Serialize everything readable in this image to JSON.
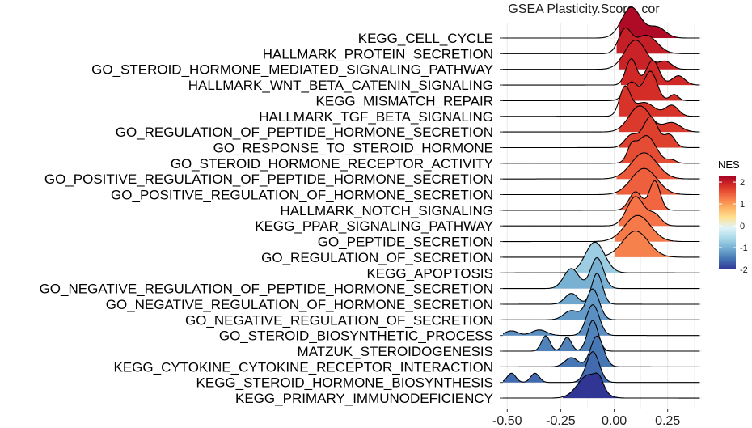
{
  "chart_data": {
    "type": "ridgeline",
    "title": "GSEA Plasticity.Score_cor",
    "xlabel": "",
    "ylabel": "",
    "xlim": [
      -0.52,
      0.41
    ],
    "x_ticks": [
      -0.5,
      -0.25,
      0.0,
      0.25
    ],
    "x_tick_labels": [
      "-0.50",
      "-0.25",
      "0.00",
      "0.25"
    ],
    "grid": true,
    "legend": {
      "title": "NES",
      "placement": "right",
      "range": [
        -2,
        2.3
      ],
      "ticks": [
        2,
        1,
        0,
        -1,
        -2
      ],
      "tick_labels": [
        "2",
        "1",
        "0",
        "-1",
        "-2"
      ],
      "colors": [
        "#313695",
        "#4575b4",
        "#74add1",
        "#abd9e9",
        "#e0f3f8",
        "#fee090",
        "#fdae61",
        "#f46d43",
        "#d73027",
        "#a50026"
      ]
    },
    "series": [
      {
        "name": "KEGG_CELL_CYCLE",
        "nes": 2.2,
        "lo": 0.02,
        "peaks": [
          [
            0.08,
            0.045,
            1.0
          ],
          [
            0.2,
            0.04,
            0.35
          ]
        ]
      },
      {
        "name": "HALLMARK_PROTEIN_SECRETION",
        "nes": 2.0,
        "lo": 0.01,
        "peaks": [
          [
            0.05,
            0.03,
            0.75
          ],
          [
            0.15,
            0.05,
            0.6
          ]
        ]
      },
      {
        "name": "GO_STEROID_HORMONE_MEDIATED_SIGNALING_PATHWAY",
        "nes": 1.95,
        "lo": 0.02,
        "peaks": [
          [
            0.1,
            0.05,
            0.95
          ],
          [
            0.24,
            0.03,
            0.25
          ]
        ]
      },
      {
        "name": "HALLMARK_WNT_BETA_CATENIN_SIGNALING",
        "nes": 1.9,
        "lo": 0.03,
        "peaks": [
          [
            0.08,
            0.025,
            0.85
          ],
          [
            0.18,
            0.03,
            0.8
          ],
          [
            0.3,
            0.03,
            0.3
          ]
        ]
      },
      {
        "name": "KEGG_MISMATCH_REPAIR",
        "nes": 1.85,
        "lo": 0.02,
        "peaks": [
          [
            0.08,
            0.03,
            0.6
          ],
          [
            0.17,
            0.03,
            0.95
          ],
          [
            0.28,
            0.02,
            0.2
          ]
        ]
      },
      {
        "name": "HALLMARK_TGF_BETA_SIGNALING",
        "nes": 1.8,
        "lo": 0.02,
        "peaks": [
          [
            0.05,
            0.025,
            0.9
          ],
          [
            0.14,
            0.05,
            0.45
          ],
          [
            0.27,
            0.03,
            0.35
          ]
        ]
      },
      {
        "name": "GO_REGULATION_OF_PEPTIDE_HORMONE_SECRETION",
        "nes": 1.75,
        "lo": 0.02,
        "peaks": [
          [
            0.12,
            0.05,
            0.85
          ],
          [
            0.27,
            0.04,
            0.3
          ]
        ]
      },
      {
        "name": "GO_RESPONSE_TO_STEROID_HORMONE",
        "nes": 1.7,
        "lo": 0.02,
        "peaks": [
          [
            0.08,
            0.03,
            0.4
          ],
          [
            0.17,
            0.035,
            1.0
          ],
          [
            0.26,
            0.025,
            0.4
          ]
        ]
      },
      {
        "name": "GO_STEROID_HORMONE_RECEPTOR_ACTIVITY",
        "nes": 1.6,
        "lo": 0.01,
        "peaks": [
          [
            0.08,
            0.02,
            0.4
          ],
          [
            0.15,
            0.045,
            0.9
          ],
          [
            0.27,
            0.02,
            0.1
          ]
        ]
      },
      {
        "name": "GO_POSITIVE_REGULATION_OF_PEPTIDE_HORMONE_SECRETION",
        "nes": 1.5,
        "lo": 0.01,
        "peaks": [
          [
            0.14,
            0.06,
            0.85
          ]
        ]
      },
      {
        "name": "GO_POSITIVE_REGULATION_OF_HORMONE_SECRETION",
        "nes": 1.45,
        "lo": 0.01,
        "peaks": [
          [
            0.14,
            0.06,
            0.85
          ]
        ]
      },
      {
        "name": "HALLMARK_NOTCH_SIGNALING",
        "nes": 1.4,
        "lo": 0.02,
        "peaks": [
          [
            0.1,
            0.03,
            0.6
          ],
          [
            0.19,
            0.025,
            0.95
          ]
        ]
      },
      {
        "name": "KEGG_PPAR_SIGNALING_PATHWAY",
        "nes": 1.3,
        "lo": 0.02,
        "peaks": [
          [
            0.1,
            0.04,
            0.95
          ],
          [
            0.19,
            0.03,
            0.35
          ]
        ]
      },
      {
        "name": "GO_PEPTIDE_SECRETION",
        "nes": 1.25,
        "lo": 0.0,
        "peaks": [
          [
            0.11,
            0.06,
            0.85
          ]
        ]
      },
      {
        "name": "GO_REGULATION_OF_SECRETION",
        "nes": 1.2,
        "lo": 0.0,
        "peaks": [
          [
            0.1,
            0.06,
            0.85
          ]
        ]
      },
      {
        "name": "KEGG_APOPTOSIS",
        "nes": -0.7,
        "lo": -0.18,
        "peaks": [
          [
            -0.09,
            0.045,
            1.0
          ]
        ]
      },
      {
        "name": "GO_NEGATIVE_REGULATION_OF_PEPTIDE_HORMONE_SECRETION",
        "nes": -1.0,
        "lo": -0.3,
        "peaks": [
          [
            -0.2,
            0.035,
            0.65
          ],
          [
            -0.08,
            0.03,
            1.0
          ]
        ]
      },
      {
        "name": "GO_NEGATIVE_REGULATION_OF_HORMONE_SECRETION",
        "nes": -1.1,
        "lo": -0.3,
        "peaks": [
          [
            -0.2,
            0.03,
            0.35
          ],
          [
            -0.08,
            0.025,
            1.0
          ]
        ]
      },
      {
        "name": "GO_NEGATIVE_REGULATION_OF_SECRETION",
        "nes": -1.2,
        "lo": -0.3,
        "peaks": [
          [
            -0.2,
            0.035,
            0.3
          ],
          [
            -0.1,
            0.03,
            1.0
          ]
        ]
      },
      {
        "name": "GO_STEROID_BIOSYNTHETIC_PROCESS",
        "nes": -1.3,
        "lo": -0.52,
        "peaks": [
          [
            -0.48,
            0.03,
            0.15
          ],
          [
            -0.35,
            0.035,
            0.18
          ],
          [
            -0.1,
            0.03,
            1.0
          ]
        ]
      },
      {
        "name": "MATZUK_STEROIDOGENESIS",
        "nes": -1.4,
        "lo": -0.4,
        "peaks": [
          [
            -0.32,
            0.02,
            0.5
          ],
          [
            -0.22,
            0.02,
            0.45
          ],
          [
            -0.1,
            0.025,
            1.0
          ]
        ]
      },
      {
        "name": "KEGG_CYTOKINE_CYTOKINE_RECEPTOR_INTERACTION",
        "nes": -1.5,
        "lo": -0.3,
        "peaks": [
          [
            -0.2,
            0.03,
            0.3
          ],
          [
            -0.08,
            0.03,
            1.0
          ]
        ]
      },
      {
        "name": "KEGG_STEROID_HORMONE_BIOSYNTHESIS",
        "nes": -1.6,
        "lo": -0.52,
        "peaks": [
          [
            -0.48,
            0.02,
            0.3
          ],
          [
            -0.37,
            0.02,
            0.3
          ],
          [
            -0.1,
            0.03,
            1.0
          ]
        ]
      },
      {
        "name": "KEGG_PRIMARY_IMMUNODEFICIENCY",
        "nes": -2.2,
        "lo": -0.24,
        "peaks": [
          [
            -0.12,
            0.05,
            0.75
          ],
          [
            -0.07,
            0.02,
            0.3
          ]
        ]
      }
    ]
  }
}
